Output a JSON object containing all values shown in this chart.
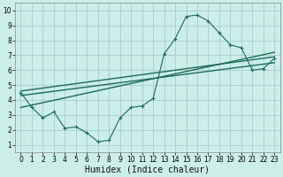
{
  "xlabel": "Humidex (Indice chaleur)",
  "background_color": "#cceee8",
  "grid_color": "#aacccc",
  "line_color": "#1a6b5a",
  "xlim": [
    -0.5,
    23.5
  ],
  "ylim": [
    0.5,
    10.5
  ],
  "xticks": [
    0,
    1,
    2,
    3,
    4,
    5,
    6,
    7,
    8,
    9,
    10,
    11,
    12,
    13,
    14,
    15,
    16,
    17,
    18,
    19,
    20,
    21,
    22,
    23
  ],
  "yticks": [
    1,
    2,
    3,
    4,
    5,
    6,
    7,
    8,
    9,
    10
  ],
  "curve_x": [
    0,
    1,
    2,
    3,
    4,
    5,
    6,
    7,
    8,
    9,
    10,
    11,
    12,
    13,
    14,
    15,
    16,
    17,
    18,
    19,
    20,
    21,
    22,
    23
  ],
  "curve_y": [
    4.5,
    3.5,
    2.8,
    3.2,
    2.1,
    2.2,
    1.8,
    1.2,
    1.3,
    2.8,
    3.5,
    3.6,
    4.1,
    7.1,
    8.1,
    9.6,
    9.7,
    9.3,
    8.5,
    7.7,
    7.5,
    6.0,
    6.1,
    6.8
  ],
  "line1_x": [
    0,
    23
  ],
  "line1_y": [
    4.3,
    6.5
  ],
  "line2_x": [
    0,
    23
  ],
  "line2_y": [
    4.6,
    6.9
  ],
  "line3_x": [
    0,
    23
  ],
  "line3_y": [
    3.5,
    7.2
  ],
  "xlabel_fontsize": 7,
  "tick_fontsize": 5.5
}
